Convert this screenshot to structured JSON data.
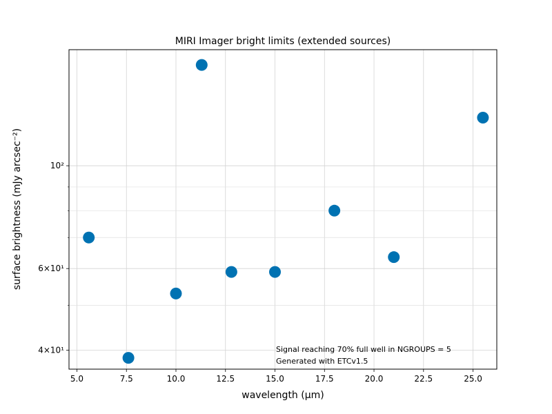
{
  "chart_data": {
    "type": "scatter",
    "title": "MIRI Imager bright limits (extended sources)",
    "xlabel": "wavelength (μm)",
    "ylabel": "surface brightness (mJy arcsec⁻²)",
    "yscale": "log",
    "xlim": [
      4.6,
      26.2
    ],
    "ylim": [
      36.4,
      178
    ],
    "x_ticks": [
      5.0,
      7.5,
      10.0,
      12.5,
      15.0,
      17.5,
      20.0,
      22.5,
      25.0
    ],
    "x_tick_labels": [
      "5.0",
      "7.5",
      "10.0",
      "12.5",
      "15.0",
      "17.5",
      "20.0",
      "22.5",
      "25.0"
    ],
    "y_major_ticks": [
      40,
      60,
      100
    ],
    "y_major_tick_labels": [
      "4×10¹",
      "6×10¹",
      "10²"
    ],
    "y_minor_ticks": [
      50,
      70,
      80,
      90
    ],
    "grid": true,
    "marker_color": "#0072b2",
    "points": [
      {
        "x": 5.6,
        "y": 70.0
      },
      {
        "x": 7.6,
        "y": 38.5
      },
      {
        "x": 10.0,
        "y": 53.0
      },
      {
        "x": 11.3,
        "y": 165.0
      },
      {
        "x": 12.8,
        "y": 59.0
      },
      {
        "x": 15.0,
        "y": 59.0
      },
      {
        "x": 18.0,
        "y": 80.0
      },
      {
        "x": 21.0,
        "y": 63.5
      },
      {
        "x": 25.5,
        "y": 127.0
      }
    ],
    "annotations": [
      "Signal reaching 70% full well in NGROUPS = 5",
      "Generated with ETCv1.5"
    ]
  }
}
